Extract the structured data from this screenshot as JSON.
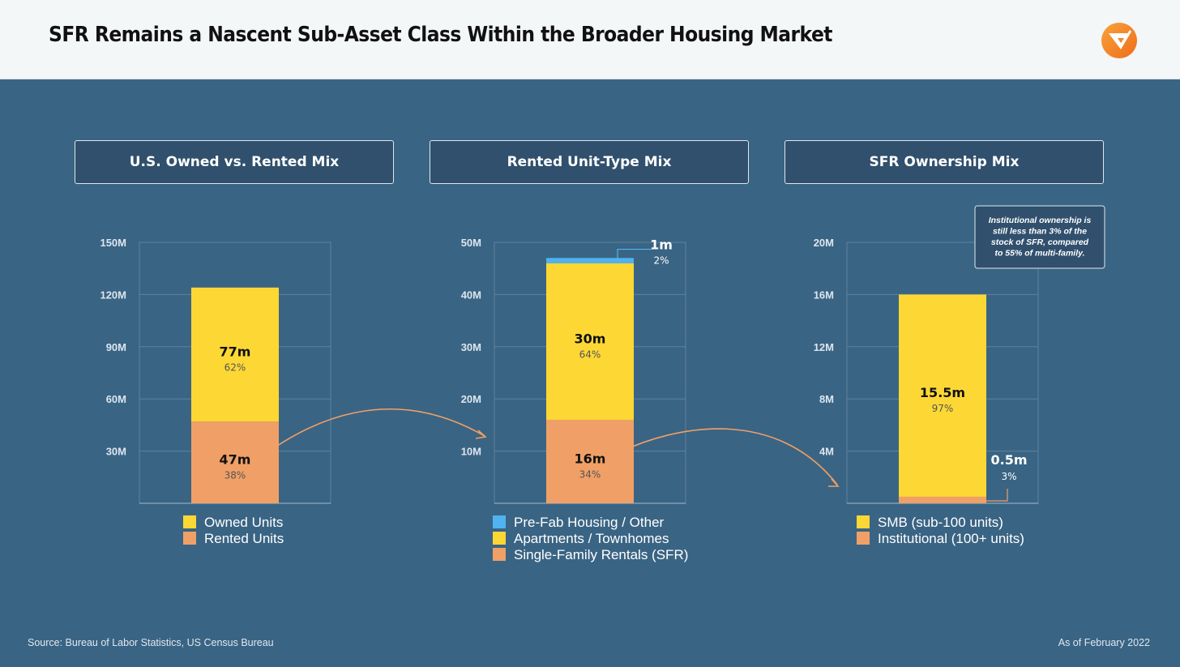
{
  "header": {
    "title": "SFR Remains a Nascent Sub-Asset Class Within the Broader Housing Market"
  },
  "colors": {
    "yellow": "#fdd835",
    "orange": "#f0a066",
    "blue": "#4fb3f0",
    "arrow": "#f0a066"
  },
  "chart_data": [
    {
      "type": "bar",
      "title": "U.S. Owned vs. Rented Mix",
      "ylim": [
        0,
        150
      ],
      "yticks": [
        30,
        60,
        90,
        120,
        150
      ],
      "ytick_labels": [
        "30M",
        "60M",
        "90M",
        "120M",
        "150M"
      ],
      "grid": true,
      "segments": [
        {
          "name": "Rented Units",
          "value": 47,
          "label": "47m",
          "pct": "38%",
          "color": "#f0a066"
        },
        {
          "name": "Owned Units",
          "value": 77,
          "label": "77m",
          "pct": "62%",
          "color": "#fdd835"
        }
      ],
      "legend": [
        {
          "name": "Owned Units",
          "color": "#fdd835"
        },
        {
          "name": "Rented Units",
          "color": "#f0a066"
        }
      ]
    },
    {
      "type": "bar",
      "title": "Rented Unit-Type Mix",
      "ylim": [
        0,
        50
      ],
      "yticks": [
        10,
        20,
        30,
        40,
        50
      ],
      "ytick_labels": [
        "10M",
        "20M",
        "30M",
        "40M",
        "50M"
      ],
      "grid": true,
      "segments": [
        {
          "name": "Single-Family Rentals (SFR)",
          "value": 16,
          "label": "16m",
          "pct": "34%",
          "color": "#f0a066"
        },
        {
          "name": "Apartments / Townhomes",
          "value": 30,
          "label": "30m",
          "pct": "64%",
          "color": "#fdd835"
        },
        {
          "name": "Pre-Fab Housing / Other",
          "value": 1,
          "label": "1m",
          "pct": "2%",
          "color": "#4fb3f0"
        }
      ],
      "legend": [
        {
          "name": "Pre-Fab Housing / Other",
          "color": "#4fb3f0"
        },
        {
          "name": "Apartments / Townhomes",
          "color": "#fdd835"
        },
        {
          "name": "Single-Family Rentals (SFR)",
          "color": "#f0a066"
        }
      ]
    },
    {
      "type": "bar",
      "title": "SFR Ownership Mix",
      "ylim": [
        0,
        20
      ],
      "yticks": [
        4,
        8,
        12,
        16,
        20
      ],
      "ytick_labels": [
        "4M",
        "8M",
        "12M",
        "16M",
        "20M"
      ],
      "grid": true,
      "segments": [
        {
          "name": "Institutional (100+ units)",
          "value": 0.5,
          "label": "0.5m",
          "pct": "3%",
          "color": "#f0a066"
        },
        {
          "name": "SMB (sub-100 units)",
          "value": 15.5,
          "label": "15.5m",
          "pct": "97%",
          "color": "#fdd835"
        }
      ],
      "legend": [
        {
          "name": "SMB (sub-100 units)",
          "color": "#fdd835"
        },
        {
          "name": "Institutional (100+ units)",
          "color": "#f0a066"
        }
      ],
      "annotation": [
        "Institutional ownership is",
        "still less than 3% of the",
        "stock of SFR, compared",
        "to 55% of multi-family."
      ]
    }
  ],
  "footer": {
    "source": "Source: Bureau of Labor Statistics, US Census Bureau",
    "date": "As of February 2022"
  }
}
